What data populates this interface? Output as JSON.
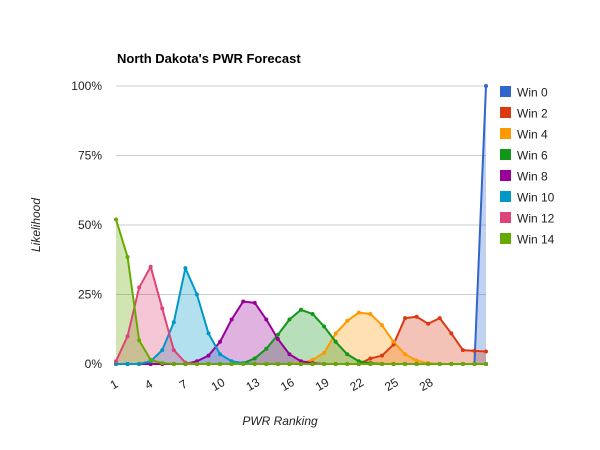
{
  "chart_data": {
    "type": "area",
    "title": "North Dakota's PWR Forecast",
    "xlabel": "PWR Ranking",
    "ylabel": "Likelihood",
    "x": [
      1,
      2,
      3,
      4,
      5,
      6,
      7,
      8,
      9,
      10,
      11,
      12,
      13,
      14,
      15,
      16,
      17,
      18,
      19,
      20,
      21,
      22,
      23,
      24,
      25,
      26,
      27,
      28,
      29,
      30,
      31,
      32,
      33
    ],
    "x_ticks": [
      "1",
      "4",
      "7",
      "10",
      "13",
      "16",
      "19",
      "22",
      "25",
      "28"
    ],
    "y_ticks": [
      "0%",
      "25%",
      "50%",
      "75%",
      "100%"
    ],
    "ylim": [
      0,
      100
    ],
    "grid": true,
    "legend_position": "right",
    "series": [
      {
        "name": "Win 0",
        "color": "#3366cc",
        "values": [
          0,
          0,
          0,
          0,
          0,
          0,
          0,
          0,
          0,
          0,
          0,
          0,
          0,
          0,
          0,
          0,
          0,
          0,
          0,
          0,
          0,
          0,
          0,
          0,
          0,
          0,
          0,
          0,
          0,
          0,
          0,
          0,
          100
        ]
      },
      {
        "name": "Win 2",
        "color": "#dc3912",
        "values": [
          0,
          0,
          0,
          0,
          0,
          0,
          0,
          0,
          0,
          0,
          0,
          0,
          0,
          0,
          0,
          0,
          0,
          0,
          0,
          0,
          0,
          0,
          2,
          3,
          7,
          16.5,
          17,
          14.5,
          16.5,
          11,
          5,
          4.7,
          4.5
        ]
      },
      {
        "name": "Win 4",
        "color": "#ff9900",
        "values": [
          0,
          0,
          0,
          0,
          0,
          0,
          0,
          0,
          0,
          0,
          0,
          0,
          0,
          0,
          0,
          0,
          0.3,
          1.5,
          4,
          11,
          15.5,
          18.5,
          18,
          14,
          8,
          3.5,
          1.2,
          0.3,
          0,
          0,
          0,
          0,
          0
        ]
      },
      {
        "name": "Win 6",
        "color": "#109618",
        "values": [
          0,
          0,
          0,
          0,
          0,
          0,
          0,
          0,
          0,
          0,
          0,
          0.3,
          2,
          5.5,
          10.5,
          16,
          19.5,
          18,
          13.5,
          8,
          3.5,
          1,
          0.3,
          0,
          0,
          0,
          0,
          0,
          0,
          0,
          0,
          0,
          0
        ]
      },
      {
        "name": "Win 8",
        "color": "#990099",
        "values": [
          0,
          0,
          0,
          0,
          0,
          0,
          0,
          1,
          3,
          8,
          16,
          22.5,
          22,
          16,
          9,
          3.5,
          1,
          0.3,
          0,
          0,
          0,
          0,
          0,
          0,
          0,
          0,
          0,
          0,
          0,
          0,
          0,
          0,
          0
        ]
      },
      {
        "name": "Win 10",
        "color": "#0099c6",
        "values": [
          0,
          0,
          0,
          1,
          5,
          15,
          34.5,
          25,
          11,
          3.5,
          1,
          0.3,
          0,
          0,
          0,
          0,
          0,
          0,
          0,
          0,
          0,
          0,
          0,
          0,
          0,
          0,
          0,
          0,
          0,
          0,
          0,
          0,
          0
        ]
      },
      {
        "name": "Win 12",
        "color": "#dd4477",
        "values": [
          1,
          10,
          27.5,
          35,
          20,
          5,
          0.5,
          0,
          0,
          0,
          0,
          0,
          0,
          0,
          0,
          0,
          0,
          0,
          0,
          0,
          0,
          0,
          0,
          0,
          0,
          0,
          0,
          0,
          0,
          0,
          0,
          0,
          0
        ]
      },
      {
        "name": "Win 14",
        "color": "#66aa00",
        "values": [
          52,
          38.5,
          8.5,
          1.5,
          0.3,
          0,
          0,
          0,
          0,
          0,
          0,
          0,
          0,
          0,
          0,
          0,
          0,
          0,
          0,
          0,
          0,
          0,
          0,
          0,
          0,
          0,
          0,
          0,
          0,
          0,
          0,
          0,
          0
        ]
      }
    ]
  }
}
